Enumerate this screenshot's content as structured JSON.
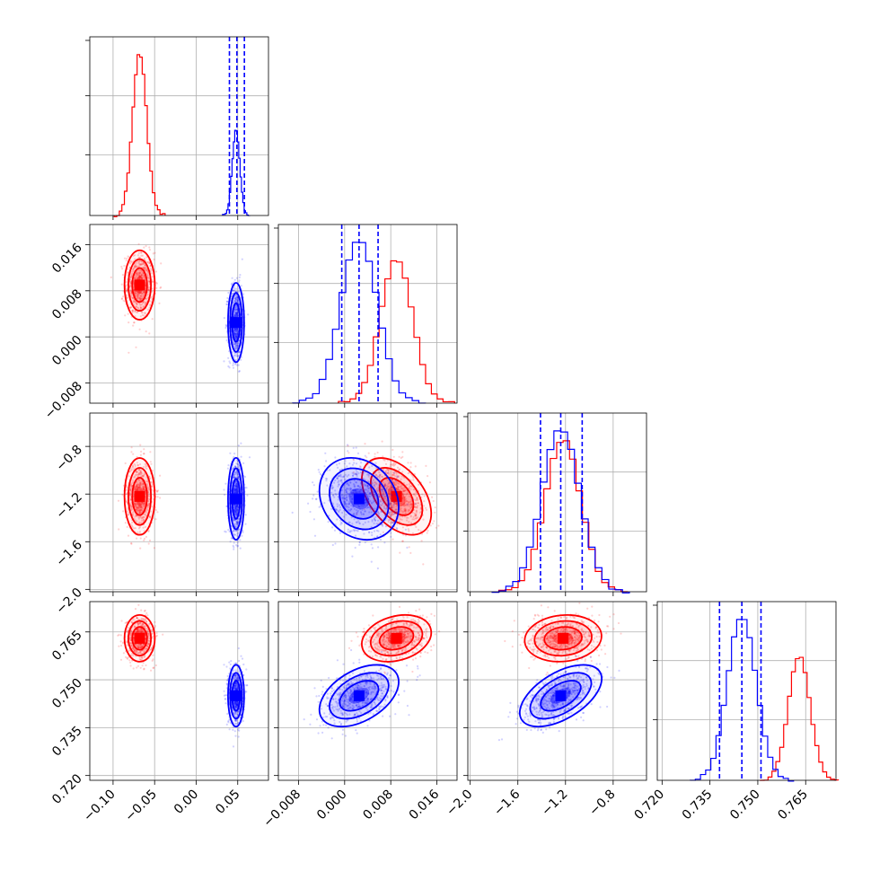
{
  "chart_data": {
    "type": "corner",
    "variables": [
      {
        "ticks": [
          -0.1,
          -0.05,
          0.0,
          0.05
        ],
        "tick_labels": [
          "−0.10",
          "−0.05",
          "0.00",
          "0.05"
        ],
        "range": [
          -0.128,
          0.087
        ]
      },
      {
        "ticks": [
          -0.008,
          0.0,
          0.008,
          0.016
        ],
        "tick_labels": [
          "−0.008",
          "0.000",
          "0.008",
          "0.016"
        ],
        "range": [
          -0.0115,
          0.0195
        ]
      },
      {
        "ticks": [
          -2.0,
          -1.6,
          -1.2,
          -0.8
        ],
        "tick_labels": [
          "−2.0",
          "−1.6",
          "−1.2",
          "−0.8"
        ],
        "range": [
          -2.02,
          -0.52
        ]
      },
      {
        "ticks": [
          0.72,
          0.735,
          0.75,
          0.765
        ],
        "tick_labels": [
          "0.720",
          "0.735",
          "0.750",
          "0.765"
        ],
        "range": [
          0.7185,
          0.7745
        ]
      }
    ],
    "series": [
      {
        "color": "#ff0000",
        "means": [
          -0.068,
          0.009,
          -1.22,
          0.763
        ],
        "sds": [
          0.0085,
          0.0028,
          0.15,
          0.0034
        ],
        "correlations": {
          "0-1": 0.0,
          "0-2": 0.0,
          "0-3": 0.0,
          "1-2": -0.45,
          "1-3": 0.25,
          "2-3": 0.1
        }
      },
      {
        "color": "#0000ff",
        "means": [
          0.048,
          0.0025,
          -1.24,
          0.745
        ],
        "sds": [
          0.0045,
          0.0032,
          0.16,
          0.0045
        ],
        "correlations": {
          "0-1": 0.0,
          "0-2": 0.0,
          "0-3": 0.0,
          "1-2": -0.2,
          "1-3": 0.45,
          "2-3": 0.55
        }
      }
    ],
    "quantile_lines": {
      "color": "#0000ff",
      "style": "dashed",
      "values": [
        [
          0.04,
          0.049,
          0.058
        ],
        [
          -0.0005,
          0.0025,
          0.0058
        ],
        [
          -1.41,
          -1.24,
          -1.06
        ],
        [
          0.738,
          0.745,
          0.751
        ]
      ]
    },
    "grid": true,
    "legend": "none"
  }
}
